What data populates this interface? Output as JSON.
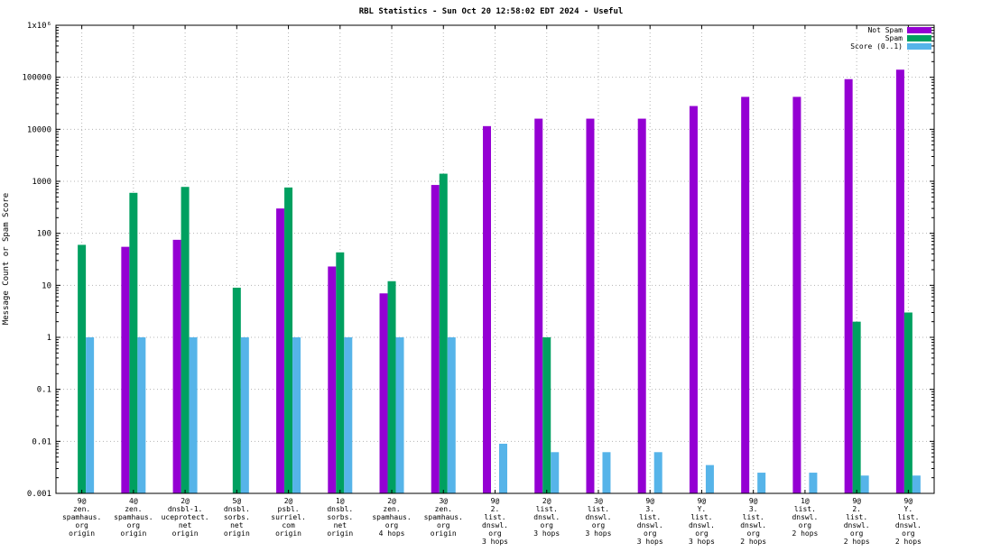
{
  "chart_data": {
    "type": "bar",
    "title": "RBL Statistics - Sun Oct 20 12:58:02 EDT 2024 - Useful",
    "ylabel": "Message Count or Spam Score",
    "y_scale": "log",
    "ylim": [
      0.001,
      1000000
    ],
    "y_ticks": [
      "0.001",
      "0.01",
      "0.1",
      "1",
      "10",
      "100",
      "1000",
      "10000",
      "100000",
      "1x10⁶"
    ],
    "grid": true,
    "legend_position": "top-right",
    "categories": [
      [
        "9@",
        "zen.",
        "spamhaus.",
        "org",
        "origin"
      ],
      [
        "4@",
        "zen.",
        "spamhaus.",
        "org",
        "origin"
      ],
      [
        "2@",
        "dnsbl-1.",
        "uceprotect.",
        "net",
        "origin"
      ],
      [
        "5@",
        "dnsbl.",
        "sorbs.",
        "net",
        "origin"
      ],
      [
        "2@",
        "psbl.",
        "surriel.",
        "com",
        "origin"
      ],
      [
        "1@",
        "dnsbl.",
        "sorbs.",
        "net",
        "origin"
      ],
      [
        "2@",
        "zen.",
        "spamhaus.",
        "org",
        "4 hops"
      ],
      [
        "3@",
        "zen.",
        "spamhaus.",
        "org",
        "origin"
      ],
      [
        "9@",
        "2.",
        "list.",
        "dnswl.",
        "org",
        "3 hops"
      ],
      [
        "2@",
        "list.",
        "dnswl.",
        "org",
        "3 hops"
      ],
      [
        "3@",
        "list.",
        "dnswl.",
        "org",
        "3 hops"
      ],
      [
        "9@",
        "3.",
        "list.",
        "dnswl.",
        "org",
        "3 hops"
      ],
      [
        "9@",
        "Y.",
        "list.",
        "dnswl.",
        "org",
        "3 hops"
      ],
      [
        "9@",
        "3.",
        "list.",
        "dnswl.",
        "org",
        "2 hops"
      ],
      [
        "1@",
        "list.",
        "dnswl.",
        "org",
        "2 hops"
      ],
      [
        "9@",
        "2.",
        "list.",
        "dnswl.",
        "org",
        "2 hops"
      ],
      [
        "9@",
        "Y.",
        "list.",
        "dnswl.",
        "org",
        "2 hops"
      ]
    ],
    "series": [
      {
        "name": "Not Spam",
        "color": "#9400d3",
        "values": [
          null,
          55,
          75,
          null,
          300,
          23,
          7,
          850,
          11500,
          16000,
          16000,
          16000,
          28000,
          42000,
          42000,
          92000,
          140000
        ]
      },
      {
        "name": "Spam",
        "color": "#00a060",
        "values": [
          60,
          600,
          780,
          9,
          760,
          43,
          12,
          1400,
          null,
          1,
          null,
          null,
          null,
          null,
          null,
          2,
          3
        ]
      },
      {
        "name": "Score (0..1)",
        "color": "#56b4e9",
        "values": [
          1,
          1,
          1,
          1,
          1,
          1,
          1,
          1,
          0.009,
          0.0062,
          0.0062,
          0.0062,
          0.0035,
          0.0025,
          0.0025,
          0.0022,
          0.0022
        ]
      }
    ]
  }
}
